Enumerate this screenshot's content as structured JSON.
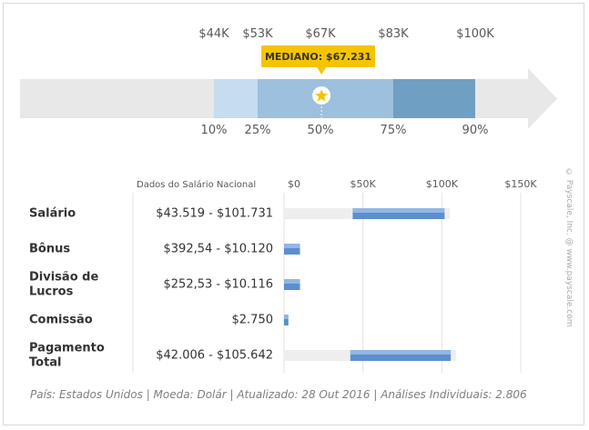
{
  "colors": {
    "arrow": "#e8e8e8",
    "band_10_25": "#c6dcef",
    "band_25_75": "#9cc0dd",
    "band_75_90": "#6f9fc2",
    "median_badge": "#f5c400",
    "star": "#f5c400",
    "bar_track": "#eeeeee",
    "bar_fill": "#5b8fcf",
    "bar_fill_light": "#a9c7eb",
    "text": "#595959",
    "label": "#333333"
  },
  "chart_data": [
    {
      "type": "bar",
      "description_free": true,
      "title": "",
      "percentiles": [
        {
          "pct_label": "10%",
          "value": 44000,
          "value_label": "$44K"
        },
        {
          "pct_label": "25%",
          "value": 53000,
          "value_label": "$53K"
        },
        {
          "pct_label": "50%",
          "value": 67000,
          "value_label": "$67K"
        },
        {
          "pct_label": "75%",
          "value": 83000,
          "value_label": "$83K"
        },
        {
          "pct_label": "90%",
          "value": 100000,
          "value_label": "$100K"
        }
      ],
      "median": {
        "label": "MEDIANO: $67.231",
        "value": 67231
      },
      "xlim": [
        22000,
        125000
      ]
    },
    {
      "type": "bar",
      "title": "",
      "header_label": "Dados do Salário Nacional",
      "x_ticks": [
        {
          "value": 0,
          "label": "$0"
        },
        {
          "value": 50000,
          "label": "$50K"
        },
        {
          "value": 100000,
          "label": "$100K"
        },
        {
          "value": 150000,
          "label": "$150K"
        }
      ],
      "xlim": [
        0,
        150000
      ],
      "rows": [
        {
          "category": [
            "Salário"
          ],
          "range_label": "$43.519 - $101.731",
          "min": 43519,
          "max": 101731,
          "track": true
        },
        {
          "category": [
            "Bônus"
          ],
          "range_label": "$392,54 - $10.120",
          "min": 392.54,
          "max": 10120,
          "track": false
        },
        {
          "category": [
            "Divisão de",
            "Lucros"
          ],
          "range_label": "$252,53 - $10.116",
          "min": 252.53,
          "max": 10116,
          "track": false
        },
        {
          "category": [
            "Comissão"
          ],
          "range_label": "$2.750",
          "min": 2750,
          "max": 2750,
          "track": false
        },
        {
          "category": [
            "Pagamento",
            "Total"
          ],
          "range_label": "$42.006 - $105.642",
          "min": 42006,
          "max": 105642,
          "track": true
        }
      ]
    }
  ],
  "footer": "País: Estados Unidos | Moeda: Dolár | Atualizado: 28 Out 2016 | Análises Individuais: 2.806",
  "watermark": "© Payscale, Inc. @ www.payscale.com"
}
